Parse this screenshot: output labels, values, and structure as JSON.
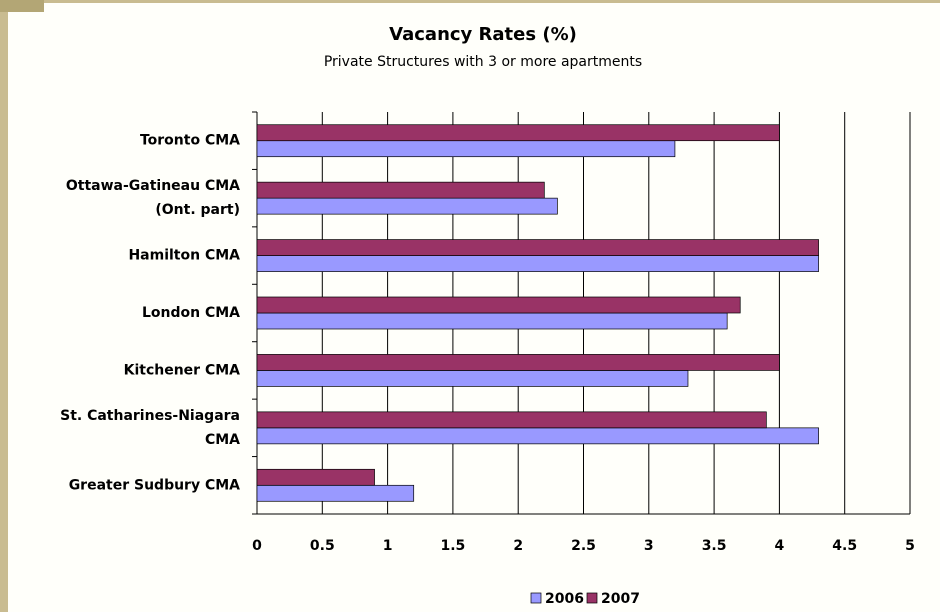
{
  "chart_data": {
    "type": "hbar",
    "title": "Vacancy Rates (%)",
    "subtitle": "Private Structures with 3 or more apartments",
    "categories": [
      [
        "Toronto CMA"
      ],
      [
        "Ottawa-Gatineau CMA",
        "(Ont. part)"
      ],
      [
        "Hamilton CMA"
      ],
      [
        "London CMA"
      ],
      [
        "Kitchener CMA"
      ],
      [
        "St. Catharines-Niagara",
        "CMA"
      ],
      [
        "Greater Sudbury CMA"
      ]
    ],
    "series": [
      {
        "name": "2006",
        "color": "#9999ff",
        "values": [
          3.2,
          2.3,
          4.3,
          3.6,
          3.3,
          4.3,
          1.2
        ]
      },
      {
        "name": "2007",
        "color": "#993366",
        "values": [
          4.0,
          2.2,
          4.3,
          3.7,
          4.0,
          3.9,
          0.9
        ]
      }
    ],
    "xlim": [
      0,
      5
    ],
    "xticks": [
      0,
      0.5,
      1,
      1.5,
      2,
      2.5,
      3,
      3.5,
      4,
      4.5,
      5
    ],
    "grid": true,
    "legend": "bottom"
  }
}
